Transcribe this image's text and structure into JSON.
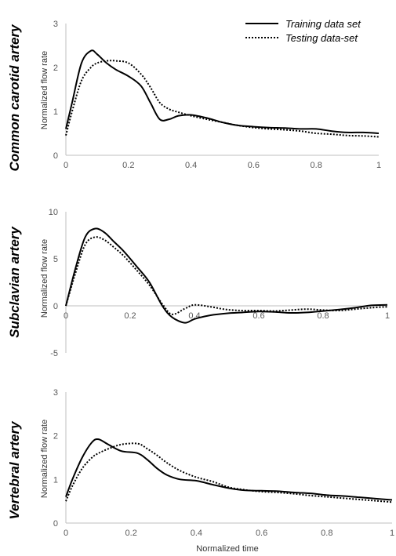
{
  "chart_data": [
    {
      "type": "line",
      "panel_title": "Common carotid artery",
      "ylabel": "Normalized flow rate",
      "xlabel": "",
      "xlim": [
        0,
        1
      ],
      "ylim": [
        0,
        3
      ],
      "xticks": [
        "0",
        "0.2",
        "0.4",
        "0.6",
        "0.8",
        "1"
      ],
      "yticks": [
        "0",
        "1",
        "2",
        "3"
      ],
      "series": [
        {
          "name": "Training data set",
          "style": "solid",
          "x": [
            0,
            0.02,
            0.05,
            0.08,
            0.1,
            0.13,
            0.16,
            0.2,
            0.24,
            0.27,
            0.3,
            0.33,
            0.36,
            0.4,
            0.45,
            0.5,
            0.55,
            0.6,
            0.65,
            0.7,
            0.75,
            0.8,
            0.85,
            0.9,
            0.95,
            1.0
          ],
          "y": [
            0.6,
            1.2,
            2.1,
            2.38,
            2.3,
            2.1,
            1.95,
            1.8,
            1.58,
            1.2,
            0.82,
            0.82,
            0.9,
            0.92,
            0.85,
            0.75,
            0.68,
            0.65,
            0.63,
            0.62,
            0.6,
            0.6,
            0.55,
            0.52,
            0.52,
            0.5
          ]
        },
        {
          "name": "Testing data-set",
          "style": "dotted",
          "x": [
            0,
            0.02,
            0.05,
            0.08,
            0.1,
            0.13,
            0.16,
            0.2,
            0.24,
            0.27,
            0.3,
            0.33,
            0.36,
            0.4,
            0.45,
            0.5,
            0.55,
            0.6,
            0.65,
            0.7,
            0.75,
            0.8,
            0.85,
            0.9,
            0.95,
            1.0
          ],
          "y": [
            0.45,
            1.0,
            1.7,
            2.0,
            2.1,
            2.15,
            2.15,
            2.1,
            1.85,
            1.55,
            1.2,
            1.05,
            0.98,
            0.9,
            0.82,
            0.75,
            0.68,
            0.63,
            0.6,
            0.58,
            0.55,
            0.5,
            0.48,
            0.45,
            0.44,
            0.42
          ]
        }
      ]
    },
    {
      "type": "line",
      "panel_title": "Subclavian artery",
      "ylabel": "Normalized flow rate",
      "xlabel": "",
      "xlim": [
        0,
        1
      ],
      "ylim": [
        -5,
        10
      ],
      "xticks": [
        "0",
        "0.2",
        "0.4",
        "0.6",
        "0.8",
        "1"
      ],
      "yticks": [
        "-5",
        "0",
        "5",
        "10"
      ],
      "series": [
        {
          "name": "Training data set",
          "style": "solid",
          "x": [
            0,
            0.03,
            0.06,
            0.09,
            0.12,
            0.15,
            0.18,
            0.22,
            0.26,
            0.3,
            0.33,
            0.37,
            0.4,
            0.45,
            0.5,
            0.55,
            0.6,
            0.65,
            0.7,
            0.75,
            0.8,
            0.85,
            0.9,
            0.95,
            1.0
          ],
          "y": [
            0,
            4.0,
            7.3,
            8.2,
            7.8,
            6.8,
            5.8,
            4.2,
            2.5,
            0.0,
            -1.2,
            -1.8,
            -1.4,
            -1.0,
            -0.8,
            -0.7,
            -0.6,
            -0.65,
            -0.75,
            -0.7,
            -0.55,
            -0.4,
            -0.2,
            0.05,
            0.1
          ]
        },
        {
          "name": "Testing data-set",
          "style": "dotted",
          "x": [
            0,
            0.03,
            0.06,
            0.09,
            0.12,
            0.15,
            0.18,
            0.22,
            0.26,
            0.3,
            0.33,
            0.37,
            0.4,
            0.45,
            0.5,
            0.55,
            0.6,
            0.65,
            0.7,
            0.75,
            0.8,
            0.85,
            0.9,
            0.95,
            1.0
          ],
          "y": [
            0,
            3.5,
            6.5,
            7.3,
            7.0,
            6.2,
            5.3,
            3.8,
            2.2,
            0.2,
            -0.9,
            -0.3,
            0.1,
            -0.1,
            -0.4,
            -0.5,
            -0.5,
            -0.55,
            -0.45,
            -0.35,
            -0.45,
            -0.5,
            -0.35,
            -0.2,
            -0.1
          ]
        }
      ]
    },
    {
      "type": "line",
      "panel_title": "Vertebral artery",
      "ylabel": "Normalized flow rate",
      "xlabel": "Normalized time",
      "xlim": [
        0,
        1
      ],
      "ylim": [
        0,
        3
      ],
      "xticks": [
        "0",
        "0.2",
        "0.4",
        "0.6",
        "0.8",
        "1"
      ],
      "yticks": [
        "0",
        "1",
        "2",
        "3"
      ],
      "series": [
        {
          "name": "Training data set",
          "style": "solid",
          "x": [
            0,
            0.02,
            0.05,
            0.08,
            0.1,
            0.13,
            0.17,
            0.22,
            0.25,
            0.28,
            0.31,
            0.35,
            0.4,
            0.45,
            0.5,
            0.55,
            0.6,
            0.65,
            0.7,
            0.75,
            0.8,
            0.85,
            0.9,
            0.95,
            1.0
          ],
          "y": [
            0.6,
            1.0,
            1.5,
            1.85,
            1.92,
            1.8,
            1.65,
            1.6,
            1.45,
            1.25,
            1.1,
            1.0,
            0.97,
            0.88,
            0.8,
            0.75,
            0.74,
            0.73,
            0.7,
            0.68,
            0.64,
            0.62,
            0.59,
            0.56,
            0.53
          ]
        },
        {
          "name": "Testing data-set",
          "style": "dotted",
          "x": [
            0,
            0.02,
            0.05,
            0.08,
            0.1,
            0.13,
            0.17,
            0.22,
            0.25,
            0.28,
            0.31,
            0.35,
            0.4,
            0.45,
            0.5,
            0.55,
            0.6,
            0.65,
            0.7,
            0.75,
            0.8,
            0.85,
            0.9,
            0.95,
            1.0
          ],
          "y": [
            0.5,
            0.85,
            1.25,
            1.5,
            1.6,
            1.7,
            1.8,
            1.82,
            1.7,
            1.55,
            1.38,
            1.2,
            1.05,
            0.95,
            0.82,
            0.76,
            0.72,
            0.7,
            0.67,
            0.63,
            0.6,
            0.57,
            0.54,
            0.51,
            0.48
          ]
        }
      ]
    }
  ],
  "colors": {
    "line": "#000000",
    "axis": "#bfbfbf",
    "tick_text": "#595959"
  }
}
